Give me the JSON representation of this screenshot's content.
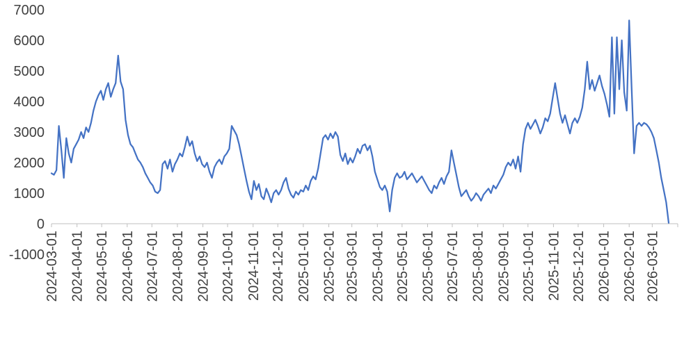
{
  "page": {
    "background": "#ffffff"
  },
  "chart_data": {
    "type": "line",
    "title": "",
    "xlabel": "",
    "ylabel": "",
    "legend_position": "none",
    "grid": false,
    "line_color": "#4472C4",
    "axis_line_color": "#BFBFBF",
    "tick_color": "#BFBFBF",
    "label_color": "#404040",
    "ylim": [
      -1000,
      7000
    ],
    "y_ticks": [
      7000,
      6000,
      5000,
      4000,
      3000,
      2000,
      1000,
      0,
      -1000
    ],
    "x_domain": [
      "2024-03-01",
      "2026-04-01"
    ],
    "x_tick_labels": [
      "2024-03-01",
      "2024-04-01",
      "2024-05-01",
      "2024-06-01",
      "2024-07-01",
      "2024-08-01",
      "2024-09-01",
      "2024-10-01",
      "2024-11-01",
      "2024-12-01",
      "2025-01-01",
      "2025-02-01",
      "2025-03-01",
      "2025-04-01",
      "2025-05-01",
      "2025-06-01",
      "2025-07-01",
      "2025-08-01",
      "2025-09-01",
      "2025-10-01",
      "2025-11-01",
      "2025-12-01",
      "2026-01-01",
      "2026-02-01",
      "2026-03-01"
    ],
    "series": [
      {
        "name": "series-1",
        "start_date": "2024-03-01",
        "step_days": 3,
        "values": [
          1650,
          1600,
          1750,
          3200,
          2400,
          1500,
          2800,
          2300,
          2000,
          2450,
          2600,
          2750,
          3000,
          2800,
          3150,
          3000,
          3300,
          3700,
          4000,
          4200,
          4350,
          4050,
          4400,
          4600,
          4150,
          4400,
          4600,
          5500,
          4650,
          4400,
          3400,
          2900,
          2600,
          2500,
          2300,
          2100,
          2000,
          1850,
          1650,
          1500,
          1350,
          1250,
          1050,
          1000,
          1100,
          1950,
          2050,
          1800,
          2100,
          1700,
          1950,
          2100,
          2300,
          2200,
          2500,
          2850,
          2550,
          2700,
          2300,
          2050,
          2200,
          1950,
          1850,
          2000,
          1700,
          1500,
          1850,
          2000,
          2100,
          1950,
          2200,
          2300,
          2450,
          3200,
          3050,
          2900,
          2600,
          2200,
          1800,
          1400,
          1050,
          800,
          1400,
          1100,
          1300,
          900,
          800,
          1150,
          950,
          700,
          1000,
          1100,
          950,
          1100,
          1350,
          1500,
          1150,
          950,
          850,
          1050,
          950,
          1100,
          1050,
          1250,
          1100,
          1400,
          1550,
          1450,
          1800,
          2300,
          2800,
          2900,
          2750,
          2950,
          2800,
          3000,
          2850,
          2250,
          2050,
          2300,
          1950,
          2150,
          2000,
          2200,
          2450,
          2300,
          2550,
          2600,
          2400,
          2550,
          2200,
          1700,
          1450,
          1200,
          1100,
          1250,
          1050,
          400,
          1100,
          1500,
          1650,
          1500,
          1550,
          1700,
          1450,
          1550,
          1650,
          1500,
          1350,
          1450,
          1550,
          1400,
          1250,
          1100,
          1000,
          1250,
          1150,
          1350,
          1500,
          1300,
          1550,
          1700,
          2400,
          2000,
          1600,
          1200,
          900,
          1000,
          1100,
          900,
          750,
          850,
          1000,
          900,
          750,
          950,
          1050,
          1150,
          1000,
          1250,
          1150,
          1300,
          1450,
          1600,
          1850,
          2000,
          1900,
          2100,
          1800,
          2200,
          1700,
          2600,
          3100,
          3300,
          3100,
          3250,
          3400,
          3200,
          2950,
          3150,
          3450,
          3350,
          3600,
          4100,
          4600,
          4100,
          3600,
          3300,
          3550,
          3250,
          2950,
          3300,
          3450,
          3300,
          3500,
          3800,
          4400,
          5300,
          4400,
          4700,
          4350,
          4600,
          4850,
          4500,
          4250,
          3900,
          3500,
          6100,
          3600,
          6100,
          4400,
          6000,
          4300,
          3700,
          6650,
          4400,
          2300,
          3200,
          3300,
          3200,
          3300,
          3250,
          3150,
          3000,
          2800,
          2400,
          2000,
          1500,
          1100,
          700,
          30
        ]
      }
    ]
  }
}
